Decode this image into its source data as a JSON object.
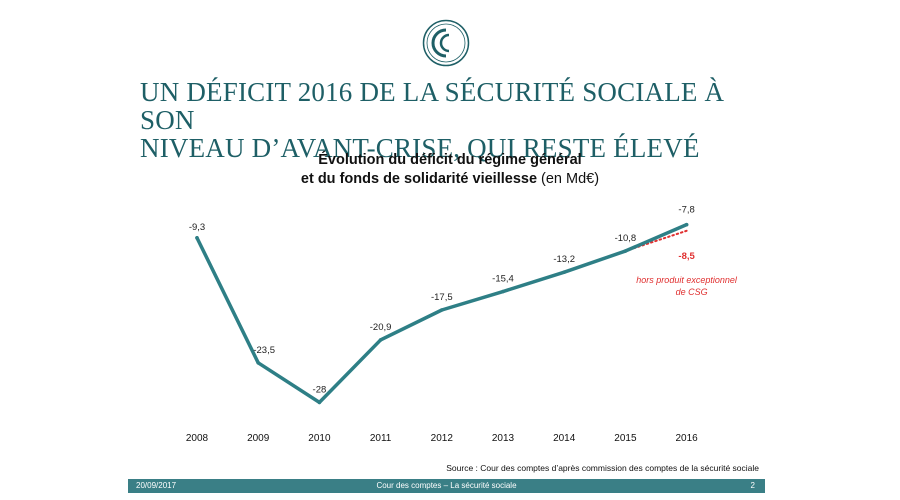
{
  "slide": {
    "title_line1": "UN DÉFICIT 2016 DE LA SÉCURITÉ SOCIALE À SON",
    "title_line2": "NIVEAU D’AVANT-CRISE, QUI RESTE ÉLEVÉ",
    "logo_icon": "cour-des-comptes-cc-logo-icon",
    "accent_color": "#1e5f66"
  },
  "chart_data": {
    "type": "line",
    "title_line1": "Évolution du déficit du régime général",
    "title_line2_bold": "et du fonds de solidarité vieillesse",
    "title_line2_rest": " (en Md€)",
    "categories": [
      "2008",
      "2009",
      "2010",
      "2011",
      "2012",
      "2013",
      "2014",
      "2015",
      "2016"
    ],
    "series": [
      {
        "values": [
          -9.3,
          -23.5,
          -28,
          -20.9,
          -17.5,
          -15.4,
          -13.2,
          -10.8,
          -7.8
        ],
        "labels": [
          "-9,3",
          "-23,5",
          "-28",
          "-20,9",
          "-17,5",
          "-15,4",
          "-13,2",
          "-10,8",
          "-7,8"
        ],
        "color": "#2e7f86",
        "style": "solid"
      },
      {
        "x": [
          "2015",
          "2016"
        ],
        "values": [
          -10.8,
          -8.5
        ],
        "labels": [
          "",
          "-8,5"
        ],
        "color": "#e03030",
        "style": "dotted"
      }
    ],
    "annotation_line1": "hors produit exceptionnel",
    "annotation_line2": "de CSG",
    "ylim": [
      -30,
      -5
    ],
    "grid": false,
    "legend": "none"
  },
  "source_text": "Source : Cour des comptes d’après commission des comptes de la sécurité sociale",
  "footer": {
    "date": "20/09/2017",
    "center_text": "Cour des comptes – La sécurité sociale",
    "page": "2",
    "color": "#3a7f86"
  }
}
